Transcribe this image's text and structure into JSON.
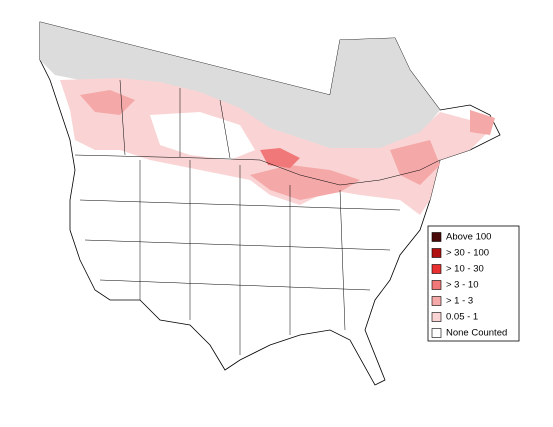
{
  "legend": {
    "items": [
      {
        "label": "Above 100",
        "color": "#4a0a0a"
      },
      {
        "label": "> 30 - 100",
        "color": "#b01010"
      },
      {
        "label": "> 10 - 30",
        "color": "#e83030"
      },
      {
        "label": "> 3 - 10",
        "color": "#f07878"
      },
      {
        "label": "> 1 - 3",
        "color": "#f5a8a8"
      },
      {
        "label": "0.05 - 1",
        "color": "#fad4d4"
      },
      {
        "label": "None Counted",
        "color": "#ffffff"
      }
    ]
  }
}
